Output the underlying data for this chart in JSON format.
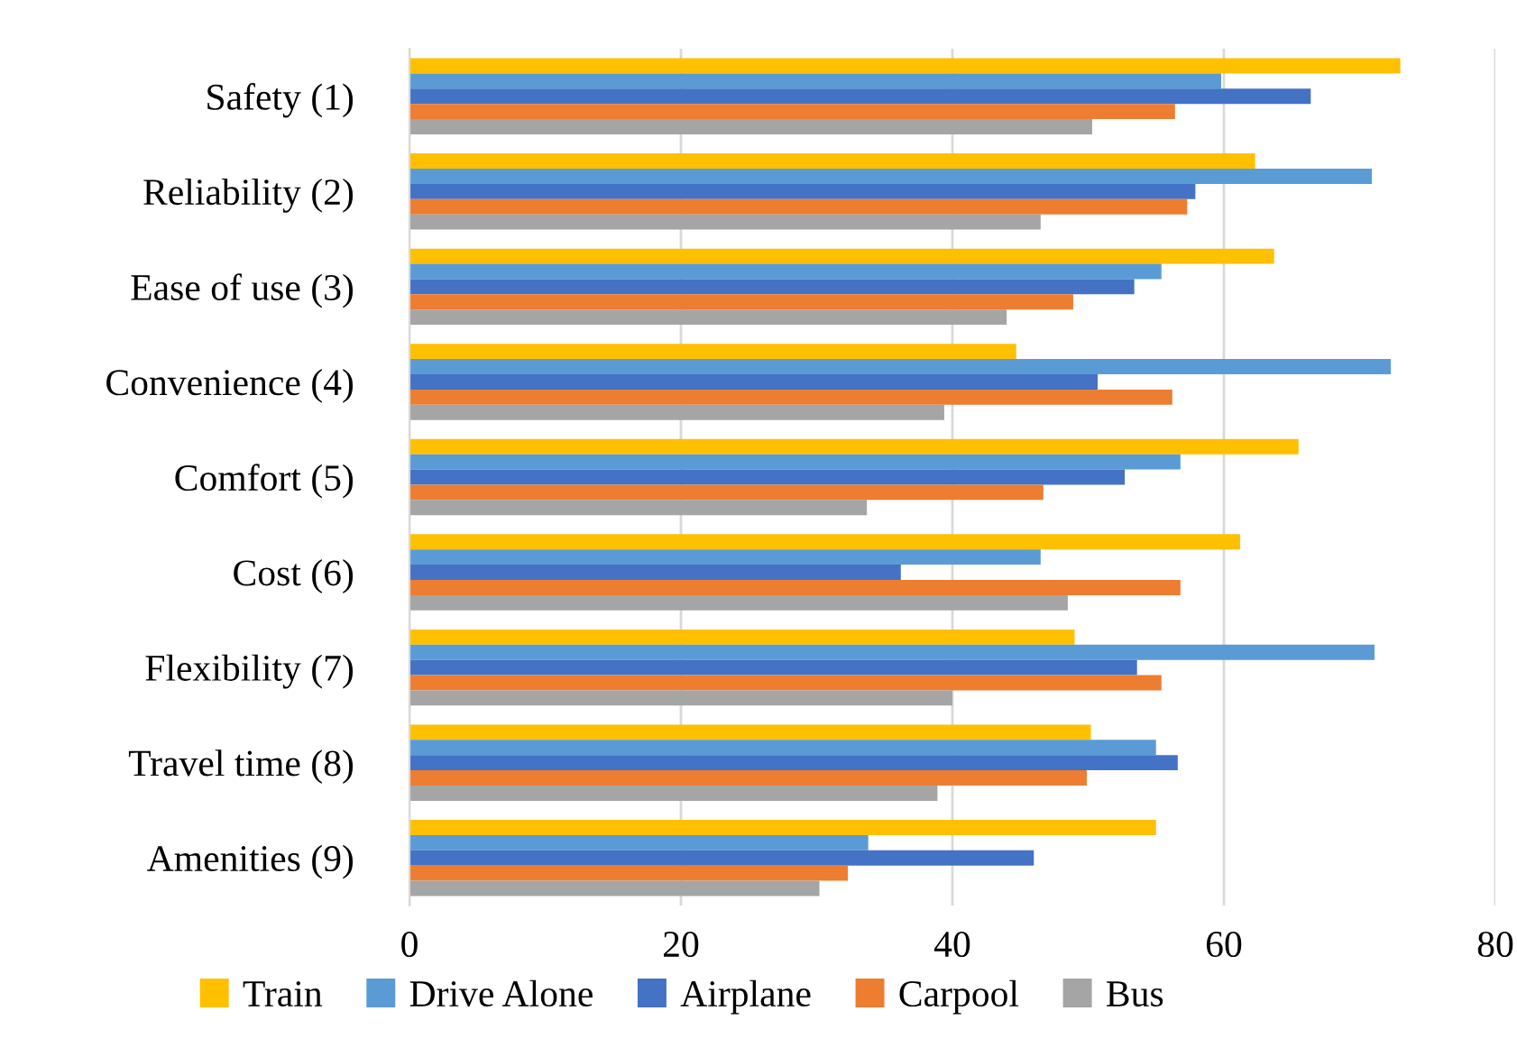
{
  "chart_data": {
    "type": "bar",
    "orientation": "horizontal",
    "categories": [
      "Safety (1)",
      "Reliability (2)",
      "Ease of use (3)",
      "Convenience (4)",
      "Comfort (5)",
      "Cost (6)",
      "Flexibility (7)",
      "Travel time (8)",
      "Amenities (9)"
    ],
    "series": [
      {
        "name": "Train",
        "color": "#ffc000",
        "values": [
          73.0,
          62.3,
          63.7,
          44.7,
          65.5,
          61.2,
          49.0,
          50.2,
          55.0
        ]
      },
      {
        "name": "Drive Alone",
        "color": "#5b9bd5",
        "values": [
          59.8,
          70.9,
          55.4,
          72.3,
          56.8,
          46.5,
          71.1,
          55.0,
          33.8
        ]
      },
      {
        "name": "Airplane",
        "color": "#4472c4",
        "values": [
          66.4,
          57.9,
          53.4,
          50.7,
          52.7,
          36.2,
          53.6,
          56.6,
          46.0
        ]
      },
      {
        "name": "Carpool",
        "color": "#ed7d31",
        "values": [
          56.4,
          57.3,
          48.9,
          56.2,
          46.7,
          56.8,
          55.4,
          49.9,
          32.3
        ]
      },
      {
        "name": "Bus",
        "color": "#a5a5a5",
        "values": [
          50.3,
          46.5,
          44.0,
          39.4,
          33.7,
          48.5,
          40.0,
          38.9,
          30.2
        ]
      }
    ],
    "xlim": [
      0,
      80
    ],
    "xticks": [
      0,
      20,
      40,
      60,
      80
    ],
    "grid": "x",
    "legend": "bottom"
  }
}
